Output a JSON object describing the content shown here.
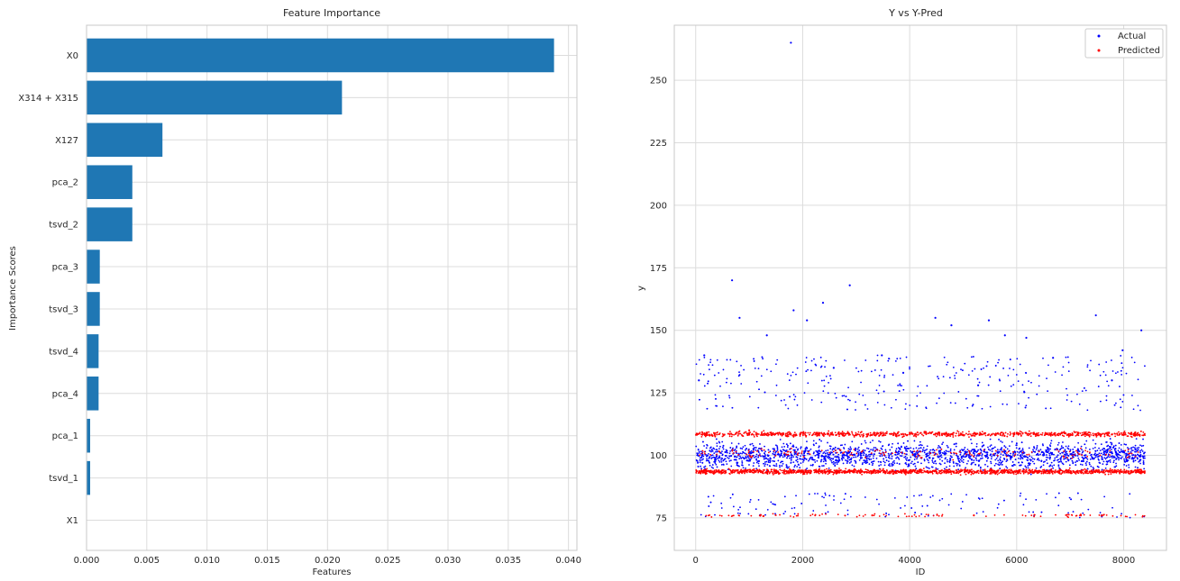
{
  "chart_data": [
    {
      "type": "bar",
      "orientation": "horizontal",
      "title": "Feature Importance",
      "xlabel": "Features",
      "ylabel": "Importance Scores",
      "categories": [
        "X0",
        "X314 + X315",
        "X127",
        "pca_2",
        "tsvd_2",
        "pca_3",
        "tsvd_3",
        "tsvd_4",
        "pca_4",
        "pca_1",
        "tsvd_1",
        "X1"
      ],
      "values": [
        0.0388,
        0.0212,
        0.0063,
        0.0038,
        0.0038,
        0.0011,
        0.0011,
        0.001,
        0.001,
        0.0003,
        0.0003,
        0.0
      ],
      "xlim": [
        0,
        0.0407
      ],
      "xticks": [
        0.0,
        0.005,
        0.01,
        0.015,
        0.02,
        0.025,
        0.03,
        0.035,
        0.04
      ],
      "xtick_labels": [
        "0.000",
        "0.005",
        "0.010",
        "0.015",
        "0.020",
        "0.025",
        "0.030",
        "0.035",
        "0.040"
      ],
      "bar_color": "#1f77b4",
      "grid": true
    },
    {
      "type": "scatter",
      "title": "Y vs Y-Pred",
      "xlabel": "ID",
      "ylabel": "y",
      "xlim": [
        -400,
        8800
      ],
      "ylim": [
        62,
        272
      ],
      "xticks": [
        0,
        2000,
        4000,
        6000,
        8000
      ],
      "yticks": [
        75,
        100,
        125,
        150,
        175,
        200,
        225,
        250
      ],
      "grid": true,
      "legend_position": "top-right",
      "series": [
        {
          "name": "Actual",
          "color": "#0000ff",
          "points": [
            [
              1780,
              265
            ],
            [
              680,
              170
            ],
            [
              2880,
              168
            ],
            [
              1830,
              158
            ],
            [
              2380,
              161
            ],
            [
              4480,
              155
            ],
            [
              7480,
              156
            ],
            [
              5480,
              154
            ],
            [
              820,
              155
            ],
            [
              2080,
              154
            ],
            [
              6180,
              147
            ],
            [
              5780,
              148
            ],
            [
              1330,
              148
            ],
            [
              7980,
              142
            ],
            [
              8330,
              150
            ],
            [
              60,
              130
            ],
            [
              160,
              140
            ],
            [
              3480,
              140
            ],
            [
              5280,
              128
            ],
            [
              4780,
              152
            ],
            [
              2580,
              135
            ],
            [
              3880,
              133
            ],
            [
              6680,
              139
            ],
            [
              7780,
              130
            ]
          ]
        },
        {
          "name": "Predicted",
          "color": "#ff0000",
          "points": [
            [
              200,
              109
            ],
            [
              1000,
              110
            ],
            [
              2000,
              109
            ],
            [
              3000,
              108
            ],
            [
              4000,
              109
            ],
            [
              5000,
              108
            ],
            [
              6000,
              109
            ],
            [
              7000,
              108
            ],
            [
              8000,
              109
            ],
            [
              500,
              93
            ],
            [
              1500,
              94
            ],
            [
              2500,
              93
            ],
            [
              3500,
              94
            ],
            [
              4500,
              93
            ],
            [
              5500,
              94
            ],
            [
              6500,
              93
            ],
            [
              7500,
              94
            ],
            [
              8300,
              93
            ],
            [
              1200,
              76
            ],
            [
              3300,
              76
            ],
            [
              5200,
              76
            ],
            [
              7200,
              76
            ]
          ]
        }
      ]
    }
  ]
}
